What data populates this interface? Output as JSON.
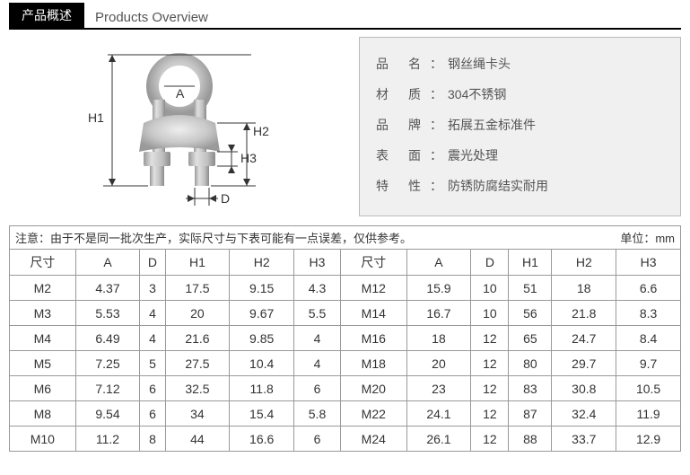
{
  "header": {
    "tab_cn": "产品概述",
    "tab_en": "Products Overview"
  },
  "diagram": {
    "labels": {
      "A": "A",
      "D": "D",
      "H1": "H1",
      "H2": "H2",
      "H3": "H3"
    },
    "colors": {
      "body": "#cfcfcf",
      "body_light": "#e8e8e8",
      "body_dark": "#a8a8a8",
      "dim_line": "#333"
    }
  },
  "specs": {
    "rows": [
      {
        "label": "品名",
        "value": "钢丝绳卡头"
      },
      {
        "label": "材质",
        "value": "304不锈钢"
      },
      {
        "label": "品牌",
        "value": "拓展五金标准件"
      },
      {
        "label": "表面",
        "value": "震光处理"
      },
      {
        "label": "特性",
        "value": "防锈防腐结实耐用"
      }
    ]
  },
  "table": {
    "note": "注意：由于不是同一批次生产，实际尺寸与下表可能有一点误差，仅供参考。",
    "unit": "单位：mm",
    "header": [
      "尺寸",
      "A",
      "D",
      "H1",
      "H2",
      "H3",
      "尺寸",
      "A",
      "D",
      "H1",
      "H2",
      "H3"
    ],
    "rows": [
      [
        "M2",
        "4.37",
        "3",
        "17.5",
        "9.15",
        "4.3",
        "M12",
        "15.9",
        "10",
        "51",
        "18",
        "6.6"
      ],
      [
        "M3",
        "5.53",
        "4",
        "20",
        "9.67",
        "5.5",
        "M14",
        "16.7",
        "10",
        "56",
        "21.8",
        "8.3"
      ],
      [
        "M4",
        "6.49",
        "4",
        "21.6",
        "9.85",
        "4",
        "M16",
        "18",
        "12",
        "65",
        "24.7",
        "8.4"
      ],
      [
        "M5",
        "7.25",
        "5",
        "27.5",
        "10.4",
        "4",
        "M18",
        "20",
        "12",
        "80",
        "29.7",
        "9.7"
      ],
      [
        "M6",
        "7.12",
        "6",
        "32.5",
        "11.8",
        "6",
        "M20",
        "23",
        "12",
        "83",
        "30.8",
        "10.5"
      ],
      [
        "M8",
        "9.54",
        "6",
        "34",
        "15.4",
        "5.8",
        "M22",
        "24.1",
        "12",
        "87",
        "32.4",
        "11.9"
      ],
      [
        "M10",
        "11.2",
        "8",
        "44",
        "16.6",
        "6",
        "M24",
        "26.1",
        "12",
        "88",
        "33.7",
        "12.9"
      ]
    ],
    "cell_fontsize": 14,
    "border_color": "#999999"
  }
}
